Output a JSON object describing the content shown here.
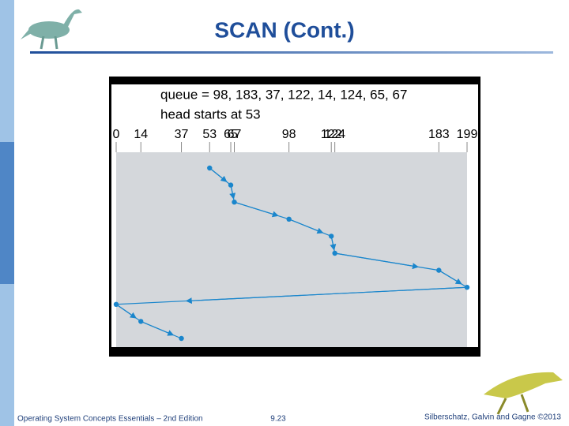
{
  "slide": {
    "title": "SCAN (Cont.)",
    "footer_left": "Operating System Concepts Essentials – 2nd Edition",
    "footer_center": "9.23",
    "footer_right": "Silberschatz, Galvin and Gagne ©2013"
  },
  "chart_data": {
    "type": "line",
    "annotations": [
      "queue = 98, 183, 37, 122, 14, 124, 65, 67",
      "head starts at 53"
    ],
    "values": [
      53,
      65,
      67,
      98,
      122,
      124,
      183,
      199,
      0,
      14,
      37
    ],
    "color": "#1a86cc",
    "xlim": [
      0,
      199
    ],
    "xticks": [
      0,
      14,
      37,
      53,
      65,
      67,
      98,
      122,
      124,
      183,
      199
    ]
  }
}
